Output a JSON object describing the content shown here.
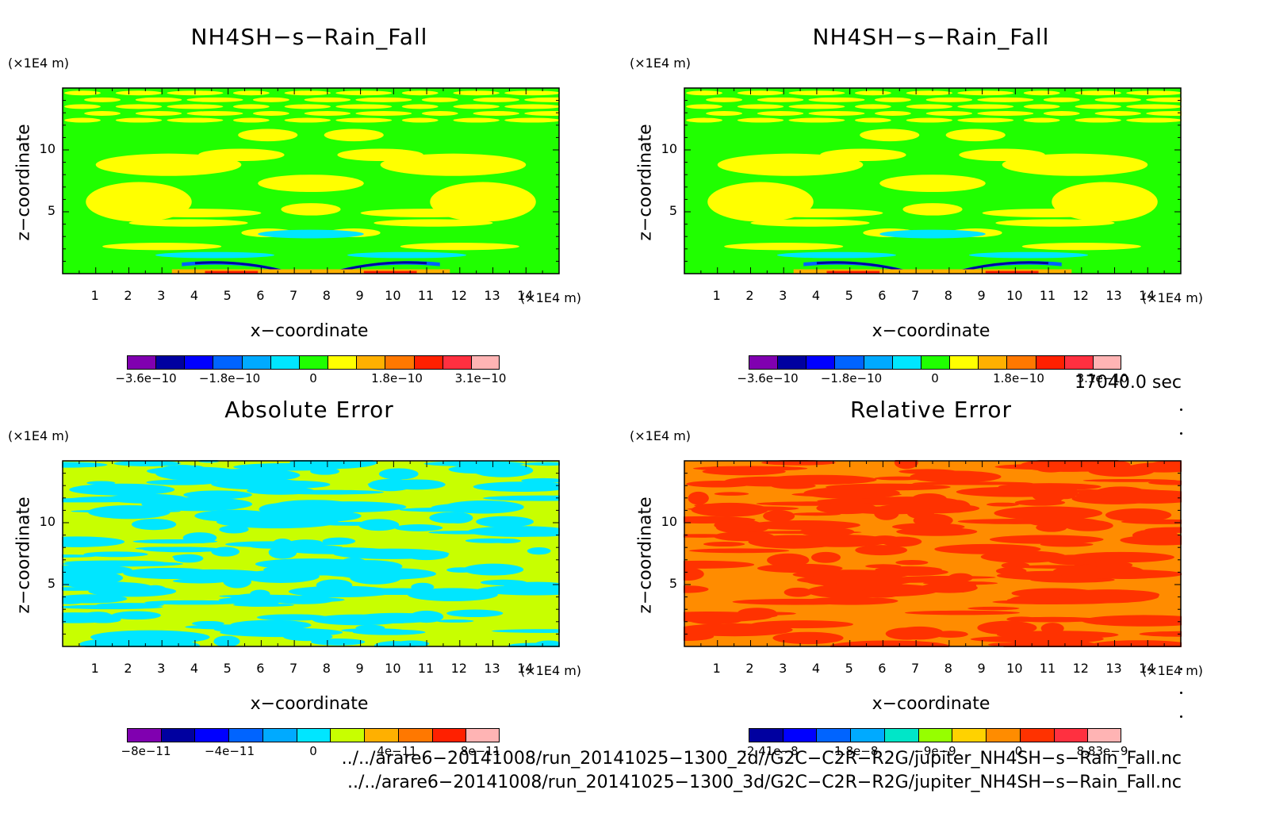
{
  "panels": [
    {
      "title": "NH4SH−s−Rain_Fall",
      "x_label": "x−coordinate",
      "y_label": "z−coordinate",
      "x_unit": "(×1E4 m)",
      "y_unit": "(×1E4 m)",
      "x_ticks": [
        "1",
        "2",
        "3",
        "4",
        "5",
        "6",
        "7",
        "8",
        "9",
        "10",
        "11",
        "12",
        "13",
        "14"
      ],
      "y_ticks": [
        "5",
        "10"
      ],
      "colorbar": {
        "colors": [
          "#8000b0",
          "#0000a0",
          "#0000ff",
          "#0064ff",
          "#00aaff",
          "#00e6ff",
          "#20ff00",
          "#ffff00",
          "#ffb000",
          "#ff7800",
          "#ff2000",
          "#ff3040",
          "#ffb4b4"
        ],
        "labels": [
          "−3.6e−10",
          "−1.8e−10",
          "0",
          "1.8e−10",
          "3.1e−10"
        ]
      }
    },
    {
      "title": "NH4SH−s−Rain_Fall",
      "x_label": "x−coordinate",
      "y_label": "z−coordinate",
      "x_unit": "(×1E4 m)",
      "y_unit": "(×1E4 m)",
      "x_ticks": [
        "1",
        "2",
        "3",
        "4",
        "5",
        "6",
        "7",
        "8",
        "9",
        "10",
        "11",
        "12",
        "13",
        "14"
      ],
      "y_ticks": [
        "5",
        "10"
      ],
      "colorbar": {
        "colors": [
          "#8000b0",
          "#0000a0",
          "#0000ff",
          "#0064ff",
          "#00aaff",
          "#00e6ff",
          "#20ff00",
          "#ffff00",
          "#ffb000",
          "#ff7800",
          "#ff2000",
          "#ff3040",
          "#ffb4b4"
        ],
        "labels": [
          "−3.6e−10",
          "−1.8e−10",
          "0",
          "1.8e−10",
          "3.1e−10"
        ]
      }
    },
    {
      "title": "Absolute Error",
      "x_label": "x−coordinate",
      "y_label": "z−coordinate",
      "x_unit": "(×1E4 m)",
      "y_unit": "(×1E4 m)",
      "x_ticks": [
        "1",
        "2",
        "3",
        "4",
        "5",
        "6",
        "7",
        "8",
        "9",
        "10",
        "11",
        "12",
        "13",
        "14"
      ],
      "y_ticks": [
        "5",
        "10"
      ],
      "colorbar": {
        "colors": [
          "#8000b0",
          "#0000a0",
          "#0000ff",
          "#0064ff",
          "#00aaff",
          "#00e6ff",
          "#c8ff00",
          "#ffb000",
          "#ff7800",
          "#ff2000",
          "#ffb4b4"
        ],
        "labels": [
          "−8e−11",
          "−4e−11",
          "0",
          "4e−11",
          "8e−11"
        ]
      }
    },
    {
      "title": "Relative Error",
      "x_label": "x−coordinate",
      "y_label": "z−coordinate",
      "x_unit": "(×1E4 m)",
      "y_unit": "(×1E4 m)",
      "x_ticks": [
        "1",
        "2",
        "3",
        "4",
        "5",
        "6",
        "7",
        "8",
        "9",
        "10",
        "11",
        "12",
        "13",
        "14"
      ],
      "y_ticks": [
        "5",
        "10"
      ],
      "colorbar": {
        "colors": [
          "#0000a0",
          "#0000ff",
          "#0064ff",
          "#00aaff",
          "#00e6c8",
          "#96ff00",
          "#ffd200",
          "#ff8c00",
          "#ff3200",
          "#ff3040",
          "#ffb4b4"
        ],
        "labels": [
          "−2.41e−8",
          "−1.8e−8",
          "−9e−9",
          "0",
          "8.83e−9"
        ]
      }
    }
  ],
  "timestamp": "17040.0 sec",
  "footer": {
    "line1": "../../arare6−20141008/run_20141025−1300_2d//G2C−C2R−R2G/jupiter_NH4SH−s−Rain_Fall.nc",
    "line2": "../../arare6−20141008/run_20141025−1300_3d/G2C−C2R−R2G/jupiter_NH4SH−s−Rain_Fall.nc"
  },
  "chart_data": [
    {
      "type": "heatmap",
      "title": "NH4SH−s−Rain_Fall",
      "xlabel": "x−coordinate",
      "ylabel": "z−coordinate",
      "xlim": [
        0,
        15
      ],
      "ylim": [
        0,
        15
      ],
      "colorbar_range": [
        -3.6e-10,
        3.1e-10
      ],
      "background_value": 0,
      "features": [
        {
          "name": "negative band near surface",
          "x_range": [
            4,
            11.5
          ],
          "z_range": [
            0.2,
            1.2
          ],
          "sign": "negative"
        },
        {
          "name": "positive patches",
          "z_range": [
            2,
            14.5
          ],
          "sign": "positive"
        }
      ]
    },
    {
      "type": "heatmap",
      "title": "NH4SH−s−Rain_Fall",
      "xlabel": "x−coordinate",
      "ylabel": "z−coordinate",
      "xlim": [
        0,
        15
      ],
      "ylim": [
        0,
        15
      ],
      "colorbar_range": [
        -3.6e-10,
        3.1e-10
      ],
      "background_value": 0
    },
    {
      "type": "heatmap",
      "title": "Absolute Error",
      "xlabel": "x−coordinate",
      "ylabel": "z−coordinate",
      "xlim": [
        0,
        15
      ],
      "ylim": [
        0,
        15
      ],
      "colorbar_range": [
        -8e-11,
        8e-11
      ],
      "dominant_values": [
        "0 to 1.6e-11",
        "-1.6e-11 to 0"
      ]
    },
    {
      "type": "heatmap",
      "title": "Relative Error",
      "xlabel": "x−coordinate",
      "ylabel": "z−coordinate",
      "xlim": [
        0,
        15
      ],
      "ylim": [
        0,
        15
      ],
      "colorbar_range": [
        -2.41e-08,
        8.83e-09
      ],
      "dominant_values": [
        "near 0, slightly negative",
        "near 0, slightly positive"
      ]
    }
  ]
}
